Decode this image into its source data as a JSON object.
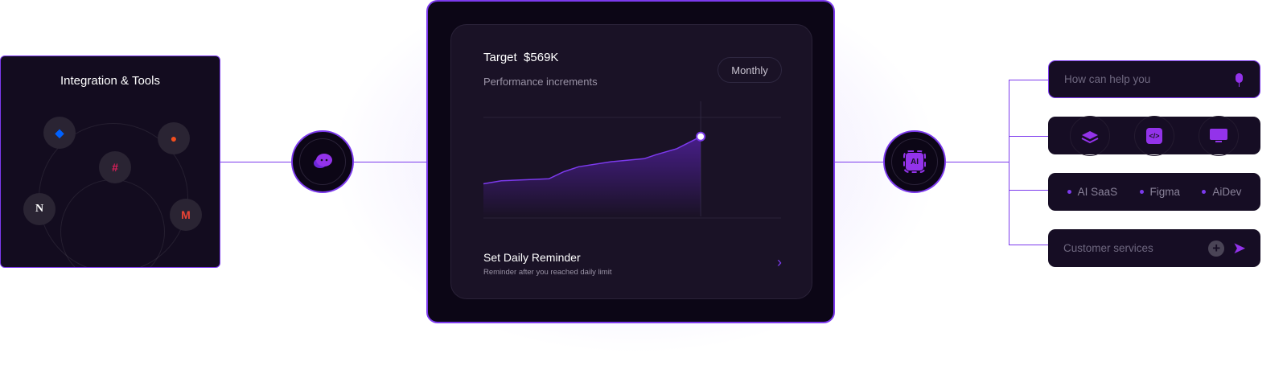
{
  "integration": {
    "title": "Integration & Tools",
    "tools": [
      {
        "icon": "dropbox-icon",
        "glyph": "◆",
        "color": "#0061fe"
      },
      {
        "icon": "figma-icon",
        "glyph": "●",
        "color": "#f24e1e"
      },
      {
        "icon": "slack-icon",
        "glyph": "#",
        "color": "#e01e5a"
      },
      {
        "icon": "notion-icon",
        "glyph": "N",
        "color": "#ffffff"
      },
      {
        "icon": "gmail-icon",
        "glyph": "M",
        "color": "#ea4335"
      }
    ]
  },
  "chat_node": {
    "icon": "chat-bubbles-icon"
  },
  "ai_node": {
    "icon": "ai-chip-icon",
    "label": "AI"
  },
  "performance": {
    "target_label": "Target",
    "target_value": "$569K",
    "subtitle": "Performance increments",
    "period": "Monthly",
    "reminder_title": "Set Daily Reminder",
    "reminder_sub": "Reminder after you reached daily limit",
    "chevron": "›"
  },
  "chart_data": {
    "type": "area",
    "x": [
      0,
      6,
      14,
      22,
      27,
      32,
      43,
      54,
      58,
      65,
      73
    ],
    "y": [
      34,
      37,
      38,
      39,
      46,
      51,
      56,
      59,
      63,
      69,
      81
    ],
    "xlim": [
      0,
      100
    ],
    "ylim": [
      0,
      100
    ],
    "grid": true,
    "highlight_index": 10,
    "color": "#7c3aed"
  },
  "right": {
    "prompt_placeholder": "How can help you",
    "icons": [
      "layers-gear-icon",
      "code-icon",
      "monitor-chart-icon"
    ],
    "tags": [
      "AI SaaS",
      "Figma",
      "AiDev"
    ],
    "service_placeholder": "Customer services",
    "plus": "+",
    "send": "➤"
  },
  "colors": {
    "accent": "#7c3aed",
    "card": "#160d24"
  }
}
